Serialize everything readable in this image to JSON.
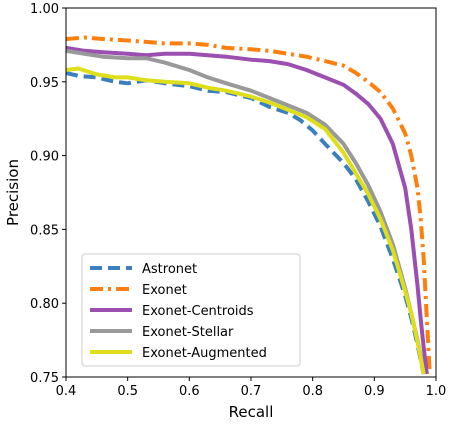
{
  "chart_data": {
    "type": "line",
    "title": "",
    "xlabel": "Recall",
    "ylabel": "Precision",
    "xlim": [
      0.4,
      1.0
    ],
    "ylim": [
      0.75,
      1.0
    ],
    "xticks": [
      0.4,
      0.5,
      0.6,
      0.7,
      0.8,
      0.9,
      1.0
    ],
    "xtick_labels": [
      "0.4",
      "0.5",
      "0.6",
      "0.7",
      "0.8",
      "0.9",
      "1.0"
    ],
    "yticks": [
      0.75,
      0.8,
      0.85,
      0.9,
      0.95,
      1.0
    ],
    "ytick_labels": [
      "0.75",
      "0.80",
      "0.85",
      "0.90",
      "0.95",
      "1.00"
    ],
    "grid": false,
    "legend_position": "lower-left",
    "series": [
      {
        "name": "Astronet",
        "color": "#3a7fbf",
        "style": "dashed",
        "x": [
          0.4,
          0.42,
          0.45,
          0.48,
          0.5,
          0.53,
          0.56,
          0.6,
          0.63,
          0.66,
          0.7,
          0.73,
          0.76,
          0.78,
          0.8,
          0.82,
          0.85,
          0.87,
          0.89,
          0.91,
          0.93,
          0.95,
          0.96,
          0.97,
          0.975,
          0.98
        ],
        "y": [
          0.956,
          0.954,
          0.953,
          0.95,
          0.949,
          0.951,
          0.949,
          0.947,
          0.944,
          0.943,
          0.939,
          0.933,
          0.929,
          0.924,
          0.917,
          0.908,
          0.895,
          0.884,
          0.869,
          0.852,
          0.83,
          0.805,
          0.79,
          0.772,
          0.762,
          0.752
        ]
      },
      {
        "name": "Exonet",
        "color": "#ff7f0e",
        "style": "dashdot",
        "x": [
          0.4,
          0.43,
          0.46,
          0.5,
          0.53,
          0.56,
          0.6,
          0.63,
          0.66,
          0.7,
          0.73,
          0.76,
          0.79,
          0.82,
          0.85,
          0.87,
          0.89,
          0.91,
          0.93,
          0.95,
          0.96,
          0.97,
          0.975,
          0.98,
          0.985,
          0.99
        ],
        "y": [
          0.979,
          0.98,
          0.979,
          0.978,
          0.977,
          0.976,
          0.976,
          0.975,
          0.973,
          0.972,
          0.971,
          0.969,
          0.967,
          0.964,
          0.961,
          0.956,
          0.95,
          0.943,
          0.932,
          0.915,
          0.9,
          0.878,
          0.858,
          0.83,
          0.79,
          0.752
        ]
      },
      {
        "name": "Exonet-Centroids",
        "color": "#9b4fb0",
        "style": "solid",
        "x": [
          0.4,
          0.43,
          0.46,
          0.5,
          0.53,
          0.56,
          0.6,
          0.63,
          0.66,
          0.7,
          0.73,
          0.76,
          0.79,
          0.82,
          0.85,
          0.87,
          0.89,
          0.91,
          0.93,
          0.95,
          0.96,
          0.97,
          0.975,
          0.98,
          0.985
        ],
        "y": [
          0.973,
          0.971,
          0.97,
          0.969,
          0.968,
          0.969,
          0.969,
          0.968,
          0.967,
          0.965,
          0.964,
          0.962,
          0.958,
          0.953,
          0.948,
          0.942,
          0.935,
          0.925,
          0.908,
          0.878,
          0.85,
          0.812,
          0.79,
          0.77,
          0.752
        ]
      },
      {
        "name": "Exonet-Stellar",
        "color": "#999999",
        "style": "solid",
        "x": [
          0.4,
          0.43,
          0.46,
          0.5,
          0.53,
          0.56,
          0.6,
          0.63,
          0.66,
          0.7,
          0.73,
          0.76,
          0.79,
          0.82,
          0.85,
          0.87,
          0.89,
          0.91,
          0.93,
          0.95,
          0.96,
          0.97,
          0.975,
          0.98
        ],
        "y": [
          0.971,
          0.969,
          0.967,
          0.966,
          0.966,
          0.963,
          0.958,
          0.953,
          0.949,
          0.944,
          0.939,
          0.934,
          0.929,
          0.921,
          0.908,
          0.895,
          0.88,
          0.862,
          0.84,
          0.81,
          0.793,
          0.775,
          0.764,
          0.752
        ]
      },
      {
        "name": "Exonet-Augmented",
        "color": "#dede1a",
        "style": "solid",
        "x": [
          0.4,
          0.42,
          0.45,
          0.48,
          0.5,
          0.53,
          0.56,
          0.6,
          0.63,
          0.66,
          0.7,
          0.73,
          0.76,
          0.79,
          0.82,
          0.85,
          0.87,
          0.89,
          0.91,
          0.93,
          0.95,
          0.96,
          0.97,
          0.975,
          0.98
        ],
        "y": [
          0.958,
          0.959,
          0.955,
          0.953,
          0.953,
          0.951,
          0.95,
          0.949,
          0.946,
          0.944,
          0.94,
          0.936,
          0.931,
          0.926,
          0.918,
          0.902,
          0.888,
          0.874,
          0.857,
          0.836,
          0.808,
          0.793,
          0.774,
          0.763,
          0.752
        ]
      }
    ]
  }
}
